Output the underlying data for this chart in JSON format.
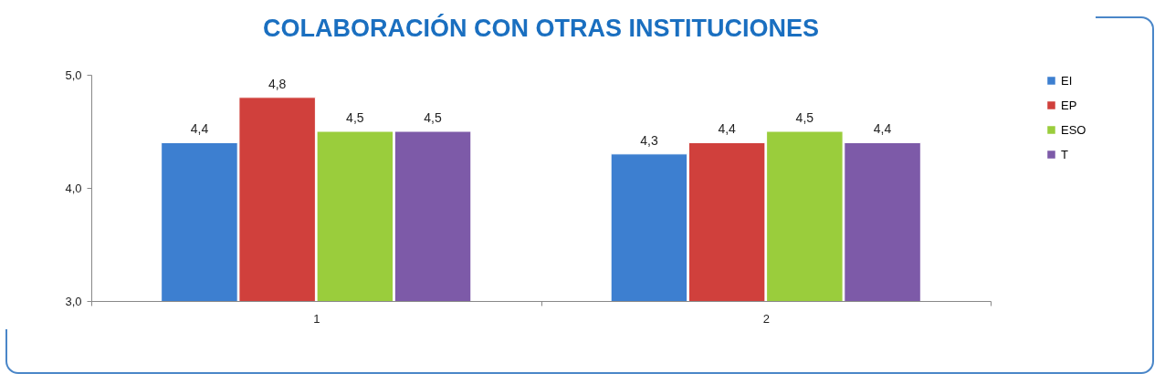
{
  "chart_data": {
    "type": "bar",
    "title": "COLABORACIÓN CON OTRAS INSTITUCIONES",
    "categories": [
      "1",
      "2"
    ],
    "series": [
      {
        "name": "EI",
        "color": "#3d7fd0",
        "values": [
          4.4,
          4.3
        ],
        "value_labels": [
          "4,4",
          "4,3"
        ]
      },
      {
        "name": "EP",
        "color": "#d0403c",
        "values": [
          4.8,
          4.4
        ],
        "value_labels": [
          "4,8",
          "4,4"
        ]
      },
      {
        "name": "ESO",
        "color": "#9acd3c",
        "values": [
          4.5,
          4.5
        ],
        "value_labels": [
          "4,5",
          "4,5"
        ]
      },
      {
        "name": "T",
        "color": "#7d5aa8",
        "values": [
          4.5,
          4.4
        ],
        "value_labels": [
          "4,5",
          "4,4"
        ]
      }
    ],
    "ylim": [
      3,
      5
    ],
    "yticks": [
      {
        "value": 3,
        "label": "3,0"
      },
      {
        "value": 4,
        "label": "4,0"
      },
      {
        "value": 5,
        "label": "5,0"
      }
    ],
    "grid": false,
    "legend": "right"
  }
}
